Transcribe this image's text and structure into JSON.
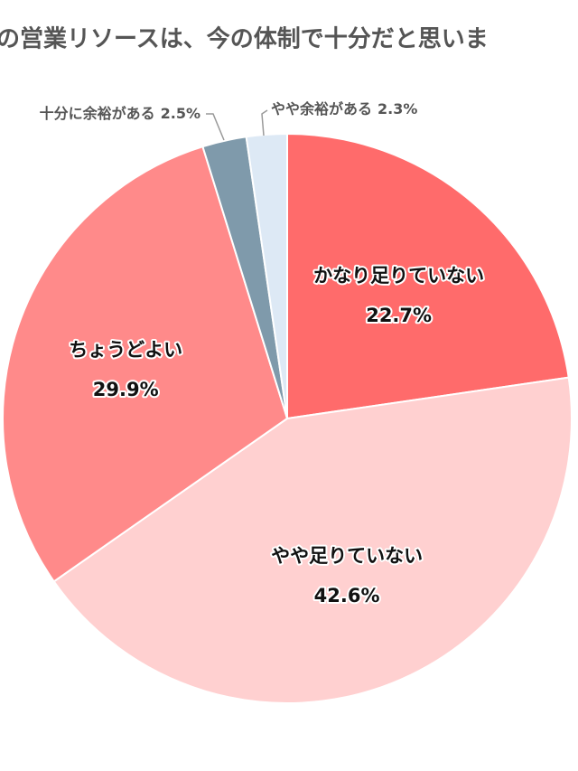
{
  "chart_data": {
    "type": "pie",
    "title": "の営業リソースは、今の体制で十分だと思いま",
    "categories": [
      "かなり足りていない",
      "やや足りていない",
      "ちょうどよい",
      "十分に余裕がある",
      "やや余裕がある"
    ],
    "values": [
      22.7,
      42.6,
      29.9,
      2.5,
      2.3
    ],
    "value_labels": [
      "22.7%",
      "42.6%",
      "29.9%",
      "2.5%",
      "2.3%"
    ],
    "colors": [
      "#ff6b6b",
      "#ffd0d0",
      "#ff8a8a",
      "#7f9aab",
      "#dde9f5"
    ]
  }
}
